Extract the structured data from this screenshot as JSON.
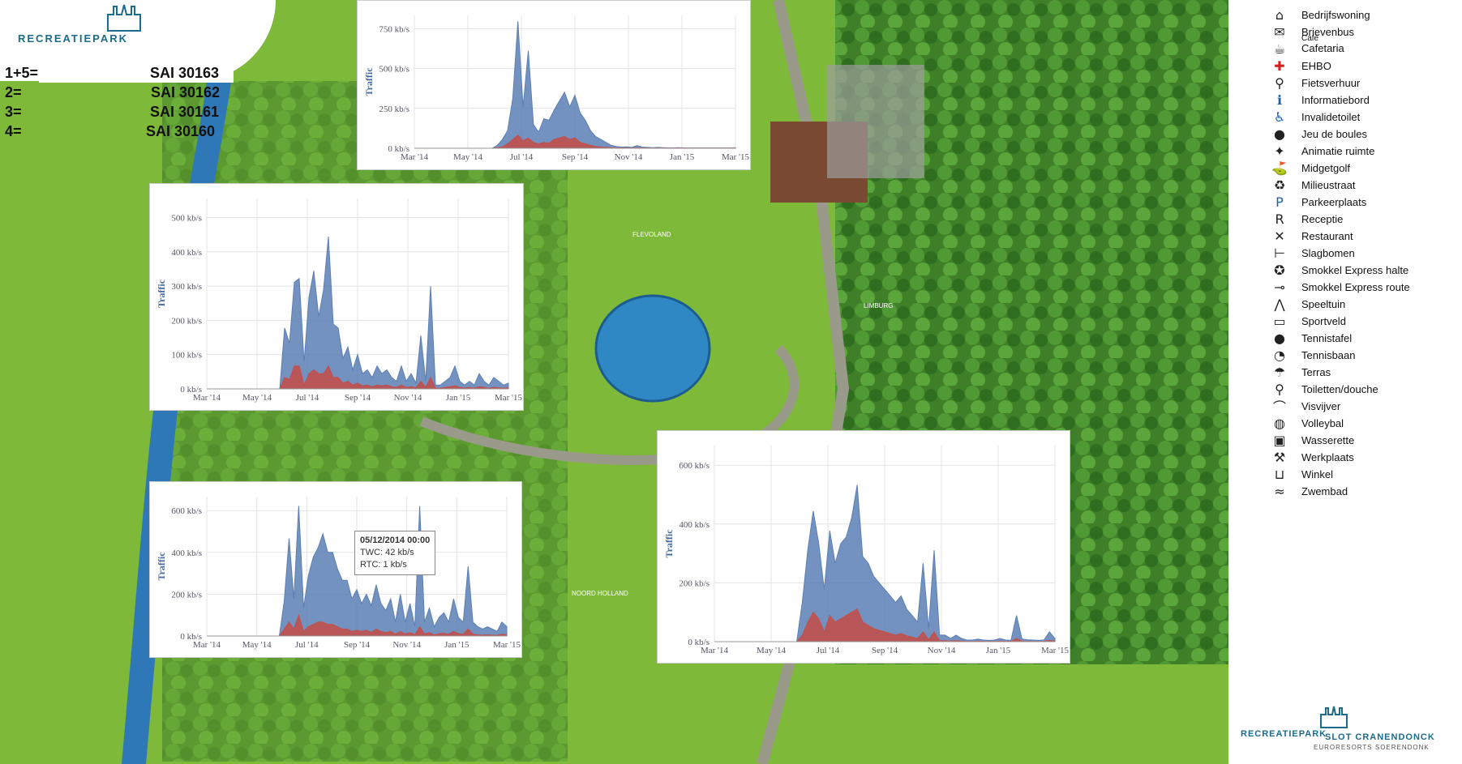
{
  "brand": {
    "logo_text": "RECREATIEPARK"
  },
  "sai_list": [
    {
      "key": "1+5=",
      "code": "SAI 30163"
    },
    {
      "key": "2=",
      "code": "SAI 30162"
    },
    {
      "key": "3=",
      "code": "SAI 30161"
    },
    {
      "key": "4=",
      "code": "SAI 30160"
    }
  ],
  "legend": [
    {
      "label": "Bedrijfswoning",
      "icon": "house-icon"
    },
    {
      "label": "Brievenbus",
      "icon": "mail-icon"
    },
    {
      "label": "Cafetaria",
      "icon": "cafe-icon",
      "overline": "Café"
    },
    {
      "label": "EHBO",
      "icon": "first-aid-icon"
    },
    {
      "label": "Fietsverhuur",
      "icon": "bike-icon"
    },
    {
      "label": "Informatiebord",
      "icon": "info-icon"
    },
    {
      "label": "Invalidetoilet",
      "icon": "wheelchair-icon"
    },
    {
      "label": "Jeu de boules",
      "icon": "boules-icon"
    },
    {
      "label": "Animatie ruimte",
      "icon": "animation-icon"
    },
    {
      "label": "Midgetgolf",
      "icon": "golf-icon"
    },
    {
      "label": "Milieustraat",
      "icon": "recycle-icon"
    },
    {
      "label": "Parkeerplaats",
      "icon": "parking-icon"
    },
    {
      "label": "Receptie",
      "icon": "reception-icon"
    },
    {
      "label": "Restaurant",
      "icon": "restaurant-icon"
    },
    {
      "label": "Slagbomen",
      "icon": "barrier-icon"
    },
    {
      "label": "Smokkel Express halte",
      "icon": "train-stop-icon"
    },
    {
      "label": "Smokkel Express route",
      "icon": "train-route-icon"
    },
    {
      "label": "Speeltuin",
      "icon": "playground-icon"
    },
    {
      "label": "Sportveld",
      "icon": "sportsfield-icon"
    },
    {
      "label": "Tennistafel",
      "icon": "table-tennis-icon"
    },
    {
      "label": "Tennisbaan",
      "icon": "tennis-icon"
    },
    {
      "label": "Terras",
      "icon": "terrace-icon"
    },
    {
      "label": "Toiletten/douche",
      "icon": "toilet-icon"
    },
    {
      "label": "Visvijver",
      "icon": "fishing-icon"
    },
    {
      "label": "Volleybal",
      "icon": "volleyball-icon"
    },
    {
      "label": "Wasserette",
      "icon": "laundry-icon"
    },
    {
      "label": "Werkplaats",
      "icon": "workshop-icon"
    },
    {
      "label": "Winkel",
      "icon": "shop-icon"
    },
    {
      "label": "Zwembad",
      "icon": "pool-icon"
    }
  ],
  "map_labels": [
    "FLEVOLAND",
    "LIMBURG",
    "NOORD HOLLAND"
  ],
  "footer": {
    "line1": "RECREATIEPARK",
    "line2": "SLOT CRANENDONCK",
    "line3": "EURORESORTS SOERENDONK"
  },
  "colors": {
    "series_blue": "#5b7fb5",
    "series_red": "#c0504d",
    "map_green": "#6aa336",
    "pond_blue": "#2f87c4"
  },
  "chart_data": [
    {
      "type": "area",
      "ylabel": "Traffic",
      "x_ticks": [
        "Mar '14",
        "May '14",
        "Jul '14",
        "Sep '14",
        "Nov '14",
        "Jan '15",
        "Mar '15"
      ],
      "y_ticks": [
        "0 kb/s",
        "250 kb/s",
        "500 kb/s",
        "750 kb/s"
      ],
      "ylim": [
        0,
        900
      ],
      "series": [
        {
          "values": [
            0,
            0,
            0,
            0,
            0,
            0,
            0,
            0,
            0,
            0,
            0,
            0,
            0,
            0,
            0,
            0,
            20,
            60,
            120,
            340,
            860,
            280,
            660,
            160,
            110,
            200,
            190,
            260,
            320,
            380,
            280,
            360,
            240,
            190,
            120,
            80,
            60,
            40,
            20,
            12,
            8,
            10,
            6,
            18,
            8,
            6,
            4,
            6,
            4,
            3,
            3,
            4,
            3,
            2,
            2,
            2,
            2,
            2,
            2,
            2,
            2,
            2,
            4
          ]
        },
        {
          "values": [
            0,
            0,
            0,
            0,
            0,
            0,
            0,
            0,
            0,
            0,
            0,
            0,
            0,
            0,
            0,
            0,
            4,
            10,
            30,
            60,
            90,
            50,
            70,
            40,
            30,
            40,
            35,
            60,
            70,
            80,
            60,
            70,
            40,
            30,
            20,
            12,
            8,
            6,
            4,
            3,
            2,
            2,
            2,
            3,
            2,
            1,
            1,
            1,
            1,
            1,
            1,
            1,
            1,
            1,
            1,
            1,
            1,
            1,
            1,
            1,
            1,
            1,
            1
          ]
        }
      ]
    },
    {
      "type": "area",
      "ylabel": "Traffic",
      "x_ticks": [
        "Mar '14",
        "May '14",
        "Jul '14",
        "Sep '14",
        "Nov '14",
        "Jan '15",
        "Mar '15"
      ],
      "y_ticks": [
        "0 kb/s",
        "100 kb/s",
        "200 kb/s",
        "300 kb/s",
        "400 kb/s",
        "500 kb/s"
      ],
      "ylim": [
        0,
        500
      ],
      "series": [
        {
          "values": [
            0,
            0,
            0,
            0,
            0,
            0,
            0,
            0,
            0,
            0,
            0,
            0,
            0,
            0,
            0,
            0,
            160,
            120,
            280,
            290,
            70,
            240,
            310,
            190,
            260,
            400,
            170,
            160,
            80,
            110,
            50,
            90,
            40,
            50,
            30,
            60,
            40,
            50,
            30,
            20,
            60,
            20,
            40,
            15,
            140,
            20,
            270,
            10,
            10,
            20,
            30,
            60,
            20,
            10,
            20,
            10,
            40,
            20,
            10,
            30,
            20,
            10,
            15
          ]
        },
        {
          "values": [
            0,
            0,
            0,
            0,
            0,
            0,
            0,
            0,
            0,
            0,
            0,
            0,
            0,
            0,
            0,
            0,
            30,
            25,
            60,
            60,
            10,
            40,
            50,
            40,
            40,
            60,
            30,
            30,
            15,
            20,
            10,
            15,
            8,
            10,
            6,
            10,
            8,
            10,
            6,
            4,
            10,
            4,
            6,
            3,
            20,
            4,
            30,
            2,
            2,
            4,
            6,
            8,
            4,
            2,
            4,
            2,
            6,
            4,
            2,
            4,
            3,
            2,
            3
          ]
        }
      ]
    },
    {
      "type": "area",
      "ylabel": "Traffic",
      "x_ticks": [
        "Mar '14",
        "May '14",
        "Jul '14",
        "Sep '14",
        "Nov '14",
        "Jan '15",
        "Mar '15"
      ],
      "y_ticks": [
        "0 kb/s",
        "200 kb/s",
        "400 kb/s",
        "600 kb/s"
      ],
      "ylim": [
        0,
        600
      ],
      "tooltip": {
        "date": "05/12/2014 00:00",
        "line1": "TWC: 42 kb/s",
        "line2": "RTC: 1 kb/s"
      },
      "series": [
        {
          "values": [
            0,
            0,
            0,
            0,
            0,
            0,
            0,
            0,
            0,
            0,
            0,
            0,
            0,
            0,
            0,
            0,
            150,
            420,
            160,
            560,
            120,
            260,
            340,
            380,
            440,
            360,
            360,
            290,
            240,
            240,
            160,
            200,
            140,
            180,
            130,
            220,
            140,
            110,
            160,
            60,
            180,
            60,
            140,
            40,
            560,
            60,
            120,
            40,
            80,
            100,
            60,
            160,
            80,
            60,
            300,
            60,
            40,
            30,
            40,
            30,
            20,
            60,
            40
          ]
        },
        {
          "values": [
            0,
            0,
            0,
            0,
            0,
            0,
            0,
            0,
            0,
            0,
            0,
            0,
            0,
            0,
            0,
            0,
            30,
            60,
            30,
            90,
            20,
            40,
            50,
            60,
            60,
            50,
            50,
            40,
            30,
            30,
            20,
            25,
            20,
            25,
            15,
            30,
            20,
            15,
            20,
            8,
            20,
            8,
            15,
            5,
            40,
            8,
            15,
            5,
            10,
            12,
            8,
            20,
            10,
            8,
            30,
            8,
            5,
            4,
            5,
            4,
            3,
            8,
            5
          ]
        }
      ]
    },
    {
      "type": "area",
      "ylabel": "Traffic",
      "x_ticks": [
        "Mar '14",
        "May '14",
        "Jul '14",
        "Sep '14",
        "Nov '14",
        "Jan '15",
        "Mar '15"
      ],
      "y_ticks": [
        "0 kb/s",
        "200 kb/s",
        "400 kb/s",
        "600 kb/s"
      ],
      "ylim": [
        0,
        600
      ],
      "series": [
        {
          "values": [
            0,
            0,
            0,
            0,
            0,
            0,
            0,
            0,
            0,
            0,
            0,
            0,
            0,
            0,
            0,
            0,
            120,
            280,
            400,
            300,
            160,
            340,
            240,
            300,
            320,
            380,
            480,
            260,
            240,
            200,
            180,
            160,
            140,
            120,
            140,
            100,
            80,
            60,
            240,
            40,
            280,
            20,
            20,
            10,
            20,
            10,
            5,
            5,
            8,
            5,
            4,
            5,
            10,
            5,
            4,
            80,
            8,
            6,
            5,
            4,
            5,
            30,
            10
          ]
        },
        {
          "values": [
            0,
            0,
            0,
            0,
            0,
            0,
            0,
            0,
            0,
            0,
            0,
            0,
            0,
            0,
            0,
            0,
            20,
            60,
            90,
            70,
            30,
            80,
            60,
            70,
            80,
            90,
            100,
            60,
            50,
            40,
            35,
            30,
            25,
            20,
            25,
            18,
            14,
            10,
            30,
            6,
            30,
            3,
            3,
            2,
            3,
            2,
            1,
            1,
            2,
            1,
            1,
            1,
            2,
            1,
            1,
            10,
            2,
            1,
            1,
            1,
            1,
            4,
            2
          ]
        }
      ]
    }
  ]
}
